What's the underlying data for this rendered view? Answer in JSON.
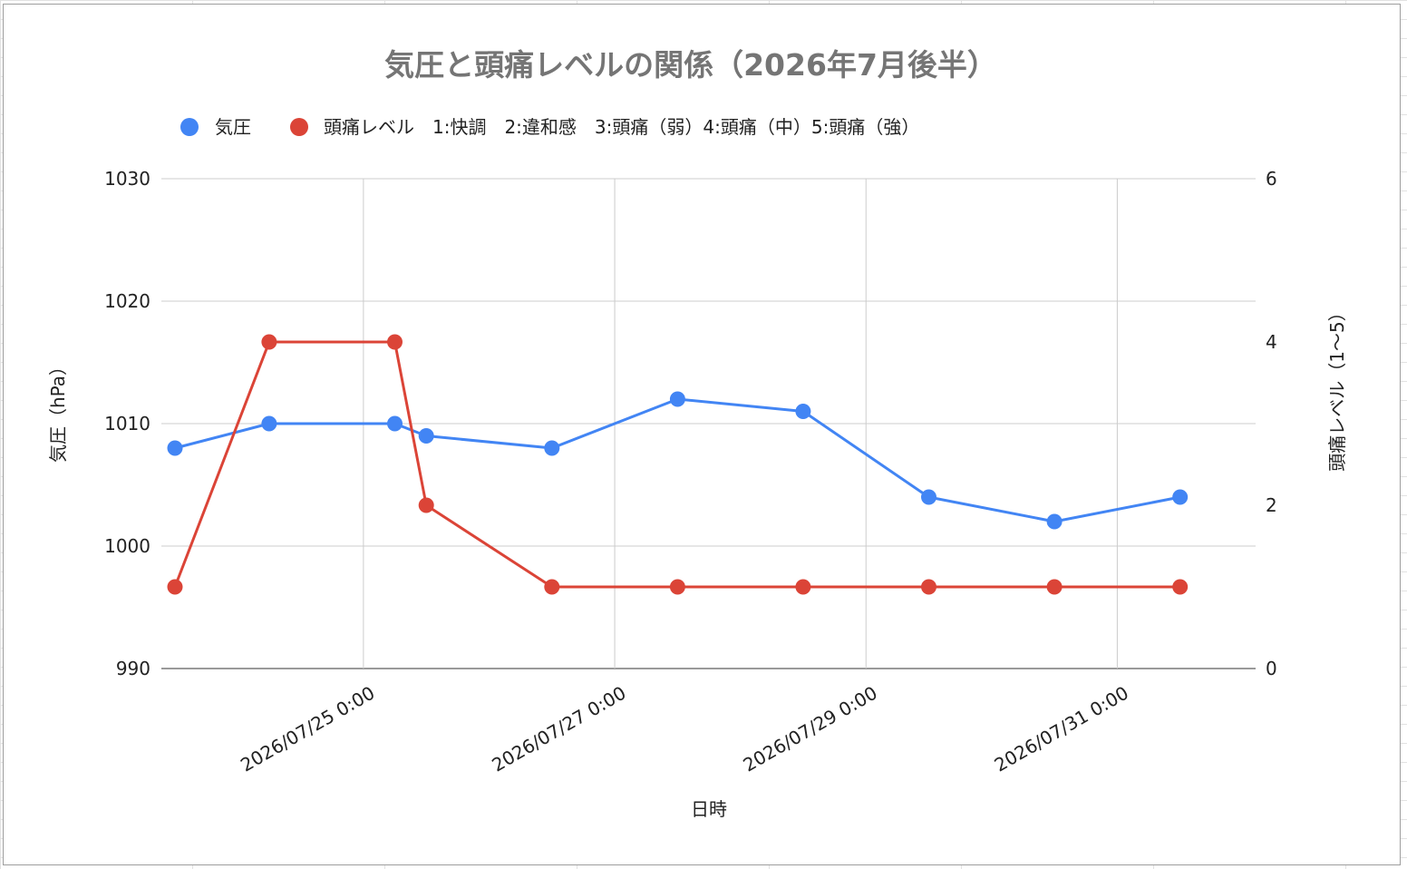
{
  "chart_data": {
    "type": "line",
    "title": "気圧と頭痛レベルの関係（2026年7月後半）",
    "xlabel": "日時",
    "ylabel": "気圧（hPa）",
    "y2label": "頭痛レベル（1〜5）",
    "x_tick_labels": [
      "2026/07/25 0:00",
      "2026/07/27 0:00",
      "2026/07/29 0:00",
      "2026/07/31 0:00"
    ],
    "x_tick_dates": [
      "2026-07-25 00:00",
      "2026-07-27 00:00",
      "2026-07-29 00:00",
      "2026-07-31 00:00"
    ],
    "x_range": [
      "2026-07-23 12:00",
      "2026-08-01 00:00"
    ],
    "ylim": [
      990,
      1030
    ],
    "y_ticks": [
      "990",
      "1000",
      "1010",
      "1020",
      "1030"
    ],
    "y2lim": [
      0,
      6
    ],
    "y2_ticks": [
      "0",
      "2",
      "4",
      "6"
    ],
    "grid": true,
    "legend_position": "top",
    "series": [
      {
        "name": "気圧",
        "axis": "left",
        "color": "#4285f4",
        "x": [
          "2026-07-23 12:00",
          "2026-07-24 06:00",
          "2026-07-25 06:00",
          "2026-07-25 12:00",
          "2026-07-26 12:00",
          "2026-07-27 12:00",
          "2026-07-28 12:00",
          "2026-07-29 12:00",
          "2026-07-30 12:00",
          "2026-07-31 12:00"
        ],
        "values": [
          1008,
          1010,
          1010,
          1009,
          1008,
          1012,
          1011,
          1004,
          1002,
          1004
        ]
      },
      {
        "name": "頭痛レベル　1:快調　2:違和感　3:頭痛（弱）4:頭痛（中）5:頭痛（強）",
        "axis": "right",
        "color": "#db4437",
        "x": [
          "2026-07-23 12:00",
          "2026-07-24 06:00",
          "2026-07-25 06:00",
          "2026-07-25 12:00",
          "2026-07-26 12:00",
          "2026-07-27 12:00",
          "2026-07-28 12:00",
          "2026-07-29 12:00",
          "2026-07-30 12:00",
          "2026-07-31 12:00"
        ],
        "values": [
          1,
          4,
          4,
          2,
          1,
          1,
          1,
          1,
          1,
          1
        ]
      }
    ]
  }
}
